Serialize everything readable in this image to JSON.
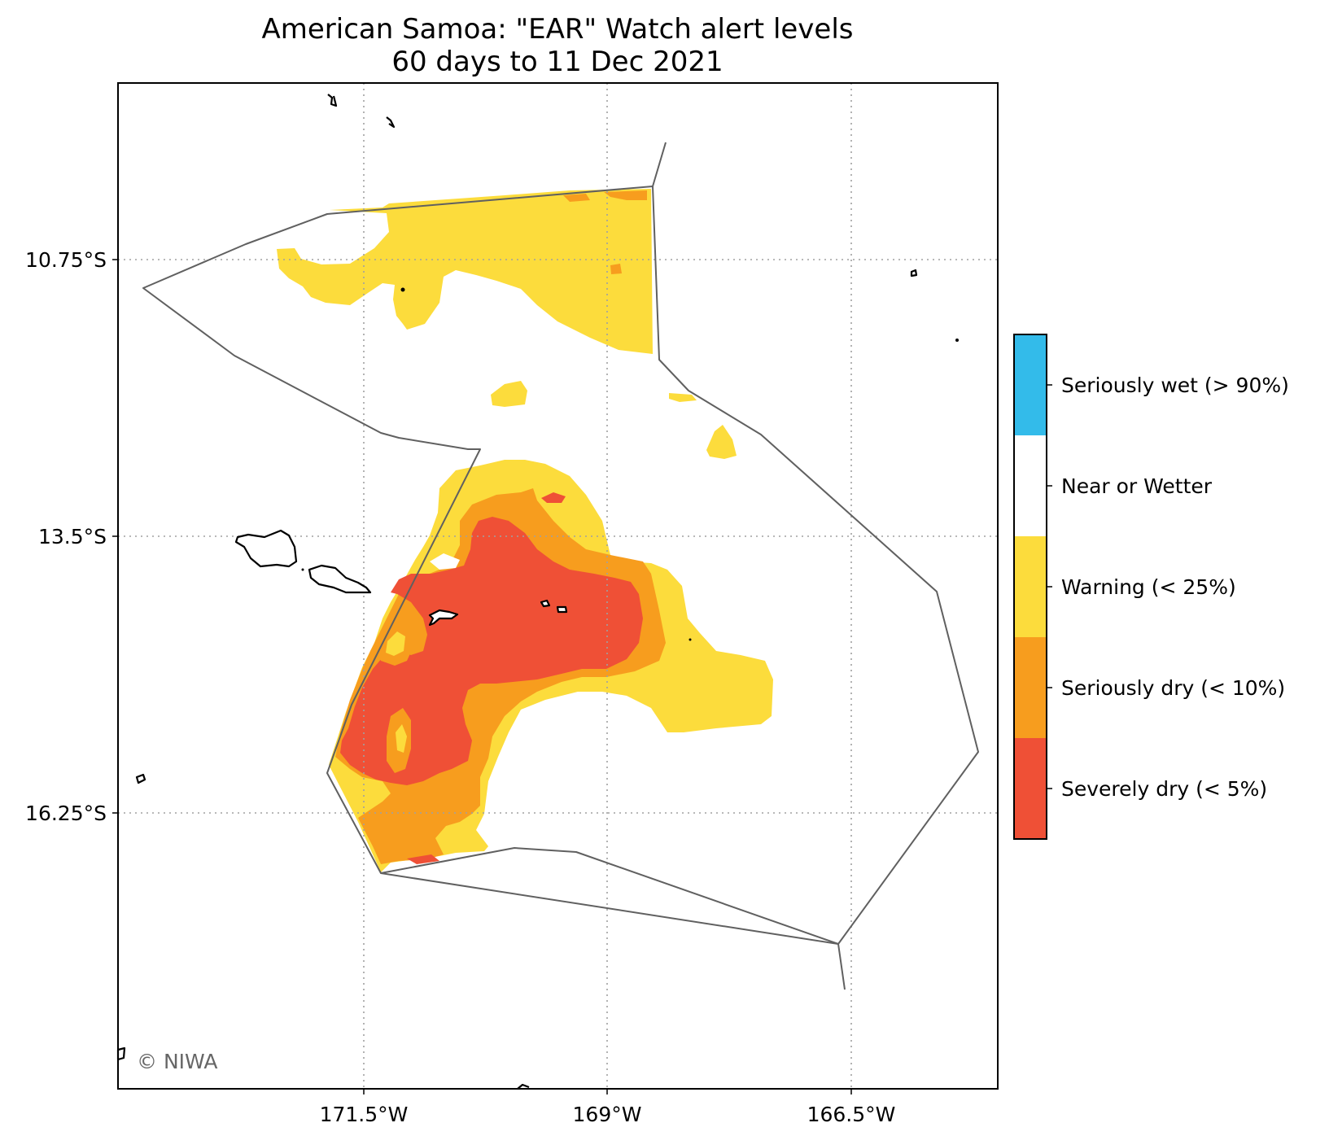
{
  "title": {
    "line1": "American Samoa: \"EAR\" Watch alert levels",
    "line2": "60 days to 11 Dec 2021"
  },
  "axes": {
    "x_ticks": [
      "171.5°W",
      "169°W",
      "166.5°W"
    ],
    "y_ticks": [
      "10.75°S",
      "13.5°S",
      "16.25°S"
    ]
  },
  "legend": {
    "entries": [
      {
        "label": "Seriously wet (> 90%)",
        "color": "#33bbea"
      },
      {
        "label": "Near or Wetter",
        "color": "#ffffff"
      },
      {
        "label": "Warning (< 25%)",
        "color": "#fcdc3c"
      },
      {
        "label": "Seriously dry (< 10%)",
        "color": "#f79d1e"
      },
      {
        "label": "Severely dry (< 5%)",
        "color": "#ef5036"
      }
    ]
  },
  "credit": "© NIWA",
  "colors": {
    "warning": "#fcdc3c",
    "seriously_dry": "#f79d1e",
    "severely_dry": "#ef5036",
    "eez_line": "#606060",
    "coastline": "#000000"
  }
}
